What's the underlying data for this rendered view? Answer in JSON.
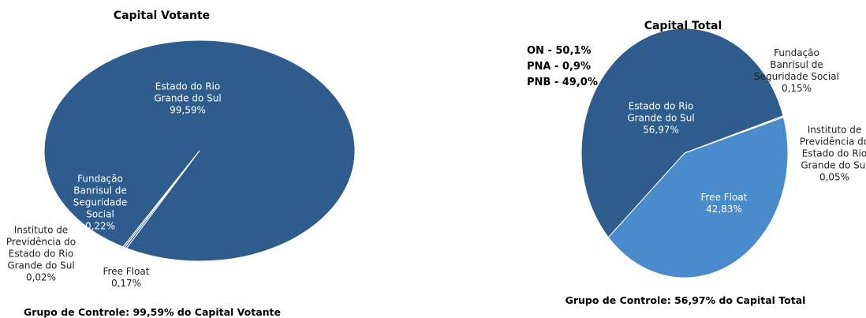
{
  "chart_data": [
    {
      "type": "pie",
      "title": "Capital Votante",
      "categories": [
        "Estado do Rio Grande do Sul",
        "Fundação Banrisul de Seguridade Social",
        "Instituto de Previdência do Estado do Rio Grande do Sul",
        "Free Float"
      ],
      "values": [
        99.59,
        0.22,
        0.02,
        0.17
      ],
      "value_labels": [
        "99,59%",
        "0,22%",
        "0,02%",
        "0,17%"
      ],
      "colors": [
        "#2e5c8c",
        "#2e5c8c",
        "#2e5c8c",
        "#2e5c8c"
      ],
      "footer": "Grupo de Controle: 99,59% do Capital Votante"
    },
    {
      "type": "pie",
      "title": "Capital Total",
      "categories": [
        "Estado do Rio Grande do Sul",
        "Fundação Banrisul de Seguridade Social",
        "Instituto de Previdência do Estado do Rio Grande do Sul",
        "Free Float"
      ],
      "values": [
        56.97,
        0.15,
        0.05,
        42.83
      ],
      "value_labels": [
        "56,97%",
        "0,15%",
        "0,05%",
        "42,83%"
      ],
      "colors": [
        "#2e5c8c",
        "#3a6ea5",
        "#5a8fc6",
        "#4a8bcb"
      ],
      "annotations": [
        "ON - 50,1%",
        "PNA - 0,9%",
        "PNB - 49,0%"
      ],
      "footer": "Grupo de Controle: 56,97% do Capital Total"
    }
  ]
}
